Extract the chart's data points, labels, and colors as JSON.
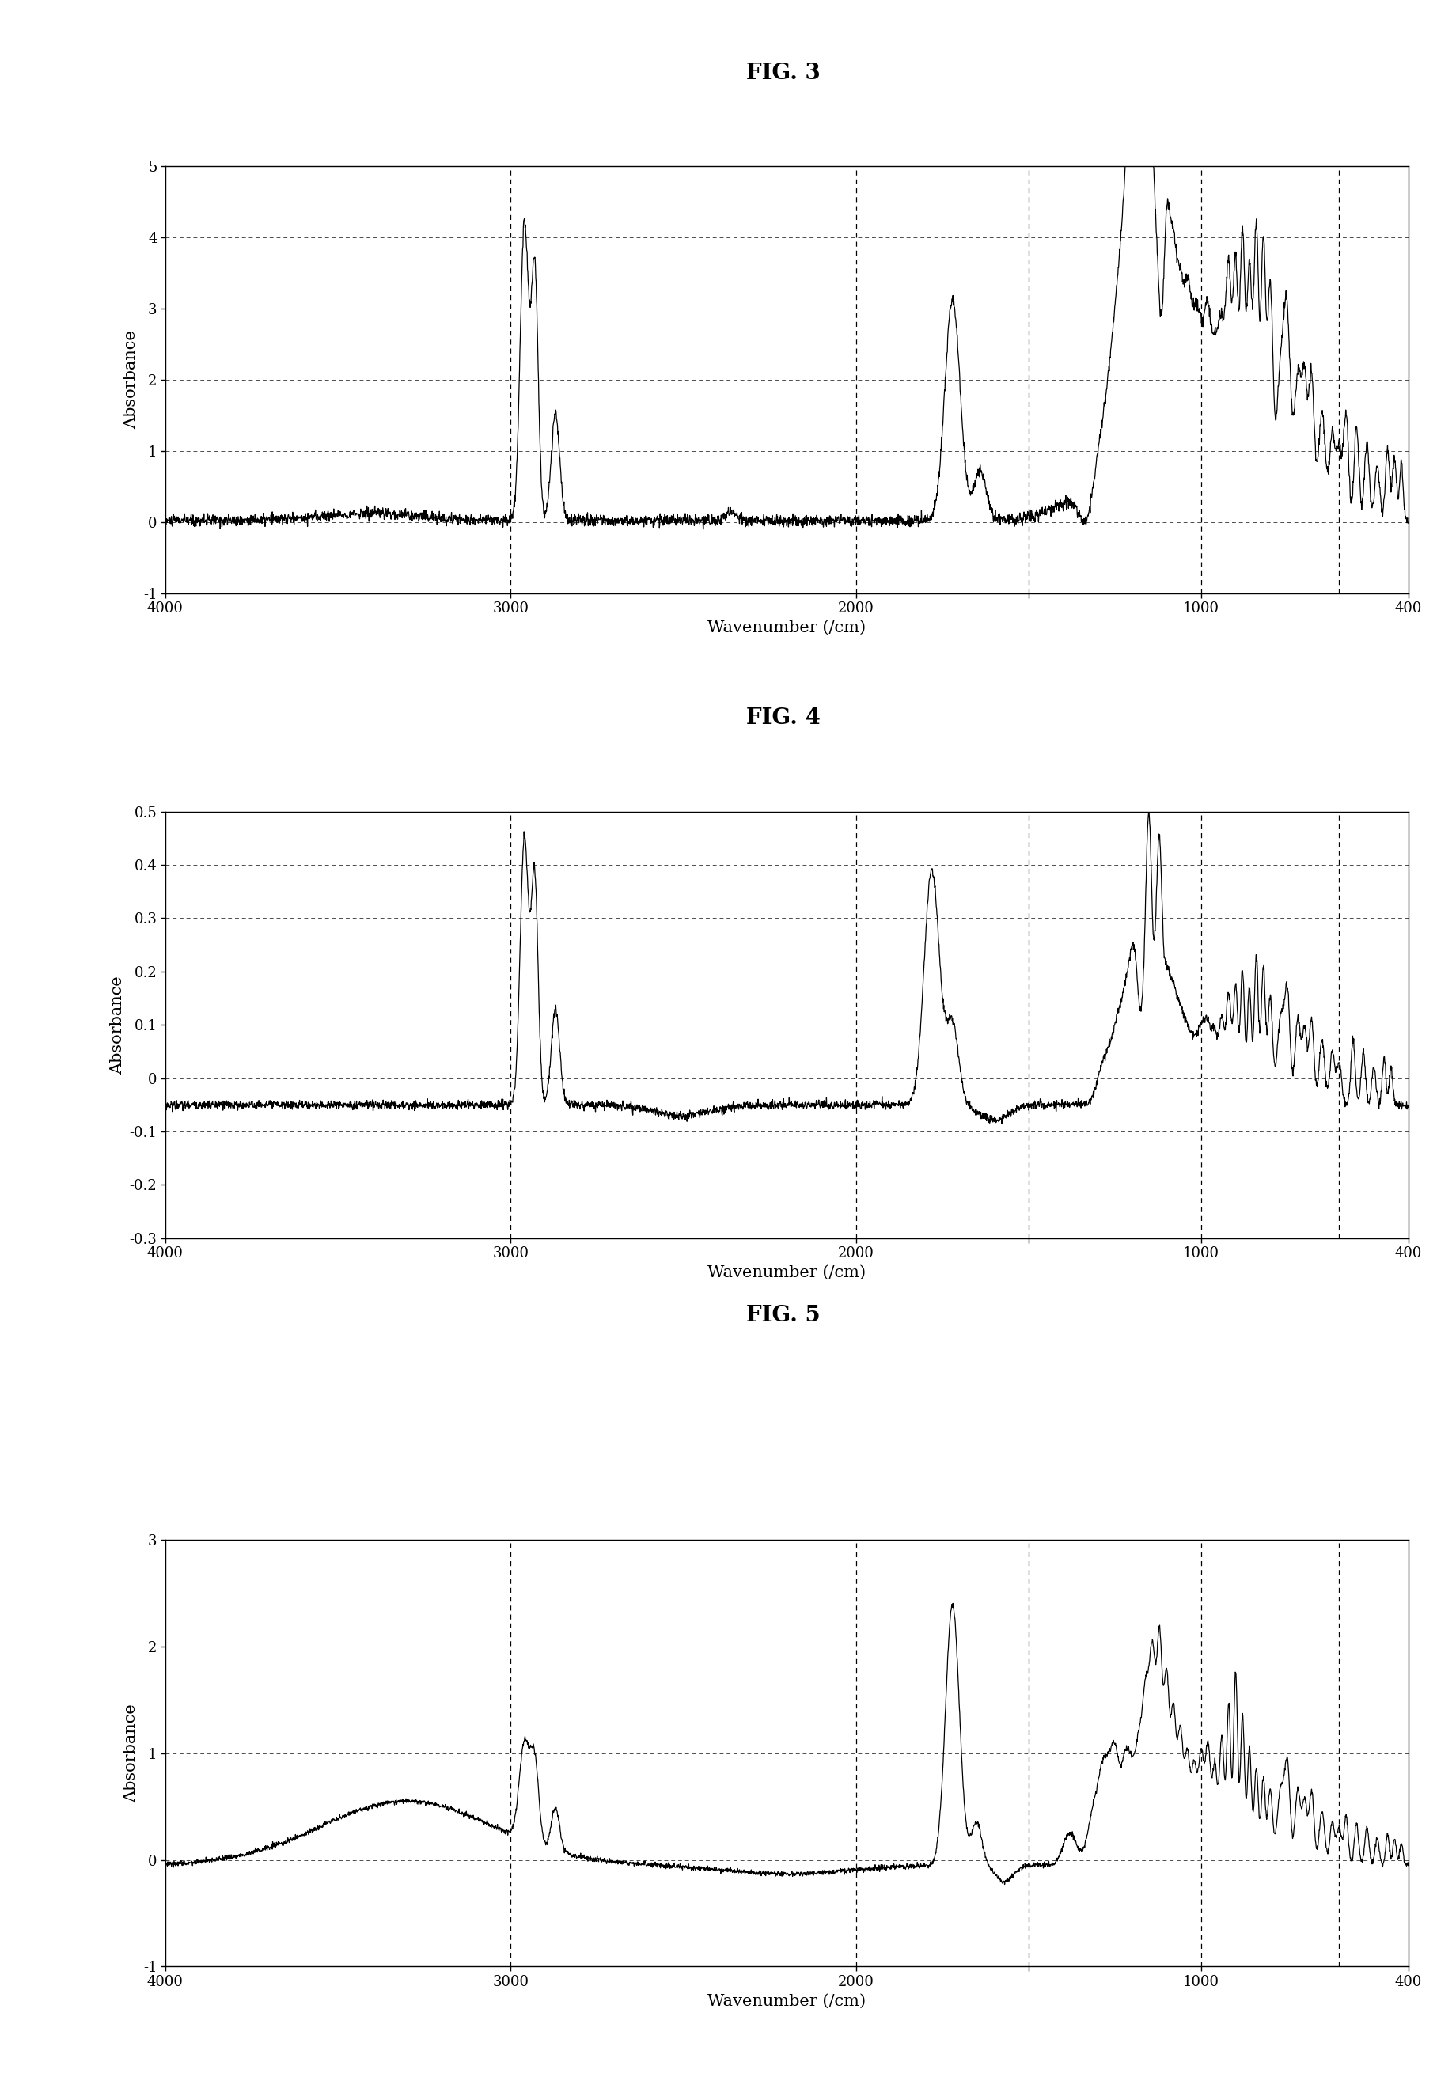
{
  "fig3_title": "FIG. 3",
  "fig4_title": "FIG. 4",
  "fig5_title": "FIG. 5",
  "xlabel": "Wavenumber (/cm)",
  "ylabel": "Absorbance",
  "xlim": [
    4000,
    400
  ],
  "fig3_ylim": [
    -1,
    5
  ],
  "fig4_ylim": [
    -0.3,
    0.5
  ],
  "fig5_ylim": [
    -1,
    3
  ],
  "fig3_yticks": [
    -1,
    0,
    1,
    2,
    3,
    4,
    5
  ],
  "fig4_yticks": [
    -0.3,
    -0.2,
    -0.1,
    0.0,
    0.1,
    0.2,
    0.3,
    0.4,
    0.5
  ],
  "fig5_yticks": [
    -1,
    0,
    1,
    2,
    3
  ],
  "xtick_labels": [
    "4000",
    "3000",
    "2000",
    "",
    "1000",
    "400"
  ],
  "xtick_vals": [
    4000,
    3000,
    2000,
    1500,
    1000,
    400
  ],
  "dashed_vlines": [
    3000,
    2000,
    1500,
    1000,
    600
  ],
  "line_color": "#000000",
  "bg_color": "#ffffff",
  "title_fontsize": 20,
  "axis_label_fontsize": 15,
  "tick_fontsize": 13
}
